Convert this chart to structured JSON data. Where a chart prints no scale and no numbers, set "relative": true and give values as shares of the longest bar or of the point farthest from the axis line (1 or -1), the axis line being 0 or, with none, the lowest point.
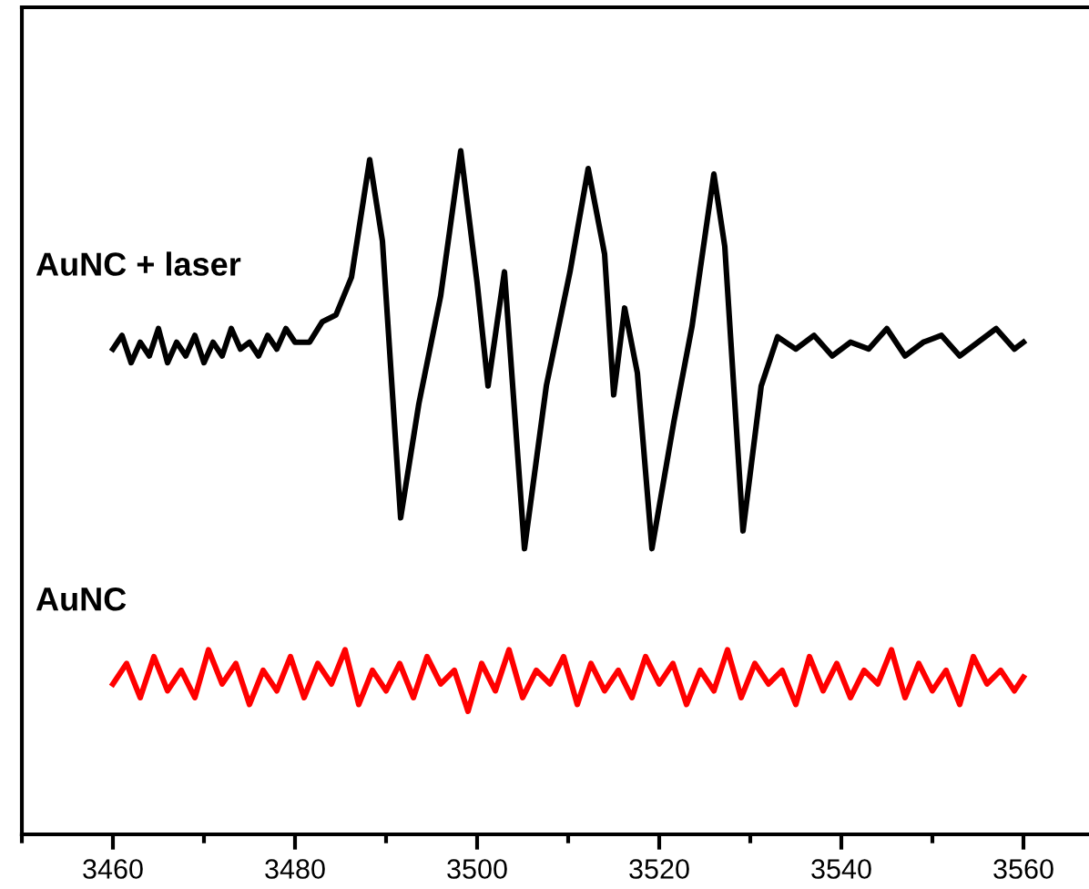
{
  "chart_data": {
    "type": "line",
    "relative": true,
    "xlim": [
      3450,
      3567
    ],
    "xticks": [
      {
        "value": 3450,
        "label": null
      },
      3460,
      {
        "value": 3470,
        "label": null
      },
      3480,
      {
        "value": 3490,
        "label": null
      },
      3500,
      {
        "value": 3510,
        "label": null
      },
      3520,
      {
        "value": 3530,
        "label": null
      },
      3540,
      {
        "value": 3550,
        "label": null
      },
      3560
    ],
    "tick_labels": "x",
    "grid": false,
    "legend": false,
    "marker": "none",
    "line_style": "solid",
    "series": [
      {
        "name": "AuNC + laser",
        "color": "#000000",
        "x": [
          3460,
          3461,
          3462,
          3463,
          3464,
          3465,
          3466,
          3467,
          3468,
          3469,
          3470,
          3471,
          3472,
          3473,
          3474,
          3475,
          3476,
          3477,
          3478,
          3479,
          3480,
          3481.6,
          3483,
          3484.5,
          3486.2,
          3488.2,
          3489.6,
          3491.6,
          3493.6,
          3496,
          3498.2,
          3500,
          3501.2,
          3503,
          3505.2,
          3507.6,
          3510.2,
          3512.2,
          3514,
          3515,
          3516.2,
          3517.6,
          3519.2,
          3521.6,
          3523.6,
          3526,
          3527.2,
          3529.2,
          3531.2,
          3533,
          3535,
          3537,
          3539,
          3541,
          3543,
          3545,
          3547,
          3549,
          3551,
          3553,
          3555,
          3557,
          3559,
          3560
        ],
        "values": [
          0.71,
          0.73,
          0.69,
          0.72,
          0.7,
          0.74,
          0.69,
          0.72,
          0.7,
          0.73,
          0.69,
          0.72,
          0.7,
          0.74,
          0.71,
          0.72,
          0.7,
          0.73,
          0.71,
          0.74,
          0.72,
          0.72,
          0.75,
          0.76,
          0.815,
          0.987,
          0.868,
          0.463,
          0.63,
          0.788,
          1.0,
          0.807,
          0.656,
          0.823,
          0.418,
          0.656,
          0.823,
          0.974,
          0.849,
          0.643,
          0.77,
          0.675,
          0.418,
          0.603,
          0.743,
          0.966,
          0.86,
          0.444,
          0.656,
          0.728,
          0.71,
          0.73,
          0.7,
          0.72,
          0.71,
          0.74,
          0.7,
          0.72,
          0.73,
          0.7,
          0.72,
          0.74,
          0.71,
          0.72
        ]
      },
      {
        "name": "AuNC",
        "color": "#ff0000",
        "x": [
          3460,
          3461.5,
          3463,
          3464.5,
          3466,
          3467.5,
          3469,
          3470.5,
          3472,
          3473.5,
          3475,
          3476.5,
          3478,
          3479.5,
          3481,
          3482.5,
          3484,
          3485.5,
          3487,
          3488.5,
          3490,
          3491.5,
          3493,
          3494.5,
          3496,
          3497.5,
          3499,
          3500.5,
          3502,
          3503.5,
          3505,
          3506.5,
          3508,
          3509.5,
          3511,
          3512.5,
          3514,
          3515.5,
          3517,
          3518.5,
          3520,
          3521.5,
          3523,
          3524.5,
          3526,
          3527.5,
          3529,
          3530.5,
          3532,
          3533.5,
          3535,
          3536.5,
          3538,
          3539.5,
          3541,
          3542.5,
          3544,
          3545.5,
          3547,
          3548.5,
          3550,
          3551.5,
          3553,
          3554.5,
          3556,
          3557.5,
          3559,
          3560
        ],
        "values": [
          0.22,
          0.25,
          0.2,
          0.26,
          0.21,
          0.24,
          0.2,
          0.27,
          0.22,
          0.25,
          0.19,
          0.24,
          0.21,
          0.26,
          0.2,
          0.25,
          0.22,
          0.27,
          0.19,
          0.24,
          0.21,
          0.25,
          0.2,
          0.26,
          0.22,
          0.24,
          0.18,
          0.25,
          0.21,
          0.27,
          0.2,
          0.24,
          0.22,
          0.26,
          0.19,
          0.25,
          0.21,
          0.24,
          0.2,
          0.26,
          0.22,
          0.25,
          0.19,
          0.24,
          0.21,
          0.27,
          0.2,
          0.25,
          0.22,
          0.24,
          0.19,
          0.26,
          0.21,
          0.25,
          0.2,
          0.24,
          0.22,
          0.27,
          0.2,
          0.25,
          0.21,
          0.24,
          0.19,
          0.26,
          0.22,
          0.24,
          0.21,
          0.23
        ]
      }
    ]
  }
}
